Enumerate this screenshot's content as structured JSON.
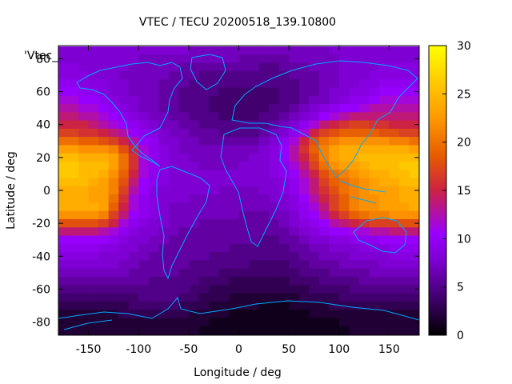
{
  "chart_data": {
    "type": "heatmap",
    "title": "VTEC / TECU 20200518_139.10800",
    "xlabel": "Longitude / deg",
    "ylabel": "Latitude / deg",
    "series_label": "'Vtec_",
    "xlim": [
      -180,
      180
    ],
    "ylim": [
      -88,
      88
    ],
    "xticks": [
      -150,
      -100,
      -50,
      0,
      50,
      100,
      150
    ],
    "yticks": [
      -80,
      -60,
      -40,
      -20,
      0,
      20,
      40,
      60,
      80
    ],
    "colorbar": {
      "min": 0,
      "max": 30,
      "ticks": [
        0,
        5,
        10,
        15,
        20,
        25,
        30
      ]
    },
    "colormap": [
      "#000000",
      "#3d0066",
      "#7a00cc",
      "#9900ff",
      "#cc2244",
      "#e65c00",
      "#ff9900",
      "#ffcc00",
      "#ffff00"
    ],
    "vtec_grid": {
      "lon_step": 10,
      "lat_step": 5,
      "lons": [
        -180,
        -170,
        -160,
        -150,
        -140,
        -130,
        -120,
        -110,
        -100,
        -90,
        -80,
        -70,
        -60,
        -50,
        -40,
        -30,
        -20,
        -10,
        0,
        10,
        20,
        30,
        40,
        50,
        60,
        70,
        80,
        90,
        100,
        110,
        120,
        130,
        140,
        150,
        160,
        170
      ],
      "lats": [
        85,
        80,
        75,
        70,
        65,
        60,
        55,
        50,
        45,
        40,
        35,
        30,
        25,
        20,
        15,
        10,
        5,
        0,
        -5,
        -10,
        -15,
        -20,
        -25,
        -30,
        -35,
        -40,
        -45,
        -50,
        -55,
        -60,
        -65,
        -70,
        -75,
        -80,
        -85
      ],
      "values": [
        [
          8,
          8,
          8,
          8,
          8,
          8,
          8,
          8,
          8,
          8,
          8,
          8,
          8,
          7,
          7,
          7,
          7,
          7,
          7,
          7,
          7,
          7,
          7,
          7,
          7,
          7,
          7,
          8,
          8,
          8,
          8,
          8,
          8,
          8,
          8,
          8
        ],
        [
          8,
          8,
          8,
          8,
          8,
          8,
          8,
          8,
          7,
          7,
          7,
          7,
          7,
          7,
          7,
          7,
          7,
          7,
          6,
          6,
          6,
          6,
          6,
          7,
          7,
          7,
          7,
          7,
          8,
          8,
          8,
          8,
          8,
          8,
          8,
          8
        ],
        [
          9,
          9,
          8,
          8,
          8,
          8,
          8,
          7,
          7,
          7,
          7,
          7,
          6,
          6,
          6,
          6,
          6,
          6,
          6,
          6,
          5,
          5,
          6,
          6,
          6,
          7,
          7,
          7,
          8,
          8,
          8,
          8,
          9,
          9,
          9,
          9
        ],
        [
          9,
          9,
          9,
          8,
          8,
          8,
          7,
          7,
          7,
          7,
          7,
          6,
          6,
          6,
          5,
          5,
          5,
          5,
          5,
          5,
          5,
          5,
          5,
          6,
          6,
          6,
          7,
          7,
          8,
          8,
          8,
          9,
          9,
          9,
          9,
          9
        ],
        [
          10,
          10,
          9,
          9,
          9,
          8,
          8,
          7,
          7,
          7,
          6,
          6,
          6,
          5,
          5,
          5,
          5,
          5,
          5,
          5,
          5,
          5,
          5,
          5,
          6,
          6,
          7,
          7,
          8,
          8,
          9,
          9,
          10,
          10,
          10,
          10
        ],
        [
          11,
          11,
          10,
          10,
          9,
          8,
          8,
          7,
          7,
          7,
          6,
          6,
          5,
          5,
          5,
          5,
          4,
          4,
          4,
          4,
          4,
          4,
          5,
          5,
          6,
          6,
          7,
          8,
          8,
          9,
          9,
          10,
          11,
          11,
          11,
          11
        ],
        [
          12,
          12,
          11,
          11,
          10,
          9,
          8,
          8,
          7,
          7,
          6,
          6,
          5,
          5,
          5,
          4,
          4,
          4,
          4,
          4,
          4,
          4,
          5,
          5,
          6,
          7,
          7,
          8,
          9,
          10,
          10,
          11,
          12,
          12,
          12,
          12
        ],
        [
          13,
          13,
          12,
          12,
          11,
          10,
          9,
          8,
          7,
          7,
          6,
          6,
          5,
          5,
          5,
          4,
          4,
          4,
          4,
          4,
          4,
          5,
          5,
          6,
          7,
          8,
          9,
          10,
          11,
          11,
          12,
          13,
          13,
          13,
          13,
          13
        ],
        [
          14,
          14,
          13,
          13,
          12,
          11,
          10,
          9,
          8,
          7,
          7,
          6,
          6,
          5,
          5,
          5,
          4,
          4,
          4,
          4,
          5,
          5,
          6,
          7,
          8,
          9,
          11,
          12,
          13,
          14,
          14,
          14,
          14,
          14,
          14,
          14
        ],
        [
          15,
          15,
          15,
          14,
          13,
          12,
          11,
          10,
          9,
          8,
          7,
          7,
          6,
          6,
          5,
          5,
          5,
          5,
          5,
          5,
          5,
          6,
          7,
          8,
          10,
          12,
          14,
          15,
          16,
          17,
          17,
          16,
          16,
          15,
          15,
          15
        ],
        [
          17,
          17,
          16,
          16,
          15,
          14,
          13,
          11,
          10,
          9,
          8,
          7,
          7,
          6,
          6,
          6,
          5,
          5,
          5,
          5,
          6,
          7,
          8,
          10,
          12,
          15,
          17,
          18,
          19,
          19,
          19,
          19,
          18,
          18,
          17,
          17
        ],
        [
          20,
          20,
          19,
          19,
          18,
          17,
          15,
          13,
          11,
          10,
          8,
          8,
          7,
          7,
          6,
          6,
          6,
          6,
          6,
          6,
          7,
          8,
          10,
          12,
          15,
          18,
          20,
          21,
          22,
          22,
          22,
          22,
          22,
          21,
          21,
          20
        ],
        [
          23,
          23,
          22,
          22,
          22,
          21,
          18,
          15,
          12,
          10,
          9,
          8,
          7,
          7,
          7,
          7,
          7,
          7,
          7,
          7,
          8,
          9,
          11,
          13,
          16,
          19,
          21,
          23,
          24,
          24,
          24,
          24,
          24,
          24,
          24,
          23
        ],
        [
          25,
          25,
          24,
          24,
          24,
          23,
          20,
          16,
          12,
          10,
          9,
          8,
          8,
          7,
          7,
          7,
          7,
          7,
          7,
          8,
          8,
          9,
          11,
          13,
          15,
          18,
          21,
          23,
          24,
          24,
          25,
          25,
          25,
          25,
          25,
          25
        ],
        [
          26,
          26,
          25,
          25,
          25,
          23,
          20,
          16,
          12,
          10,
          9,
          8,
          8,
          8,
          7,
          7,
          7,
          7,
          8,
          8,
          8,
          9,
          10,
          12,
          14,
          17,
          20,
          22,
          23,
          23,
          24,
          25,
          25,
          25,
          26,
          26
        ],
        [
          26,
          26,
          25,
          25,
          24,
          22,
          19,
          15,
          12,
          10,
          9,
          8,
          8,
          8,
          8,
          8,
          8,
          8,
          8,
          8,
          8,
          9,
          10,
          11,
          13,
          15,
          18,
          20,
          21,
          22,
          23,
          24,
          24,
          25,
          25,
          26
        ],
        [
          25,
          25,
          25,
          24,
          23,
          21,
          18,
          14,
          11,
          10,
          9,
          8,
          8,
          8,
          8,
          8,
          8,
          8,
          8,
          8,
          8,
          8,
          9,
          10,
          12,
          14,
          17,
          19,
          20,
          21,
          22,
          23,
          24,
          24,
          25,
          25
        ],
        [
          24,
          24,
          24,
          23,
          23,
          21,
          17,
          13,
          11,
          9,
          8,
          8,
          8,
          8,
          8,
          8,
          7,
          7,
          7,
          7,
          8,
          8,
          9,
          10,
          12,
          14,
          16,
          18,
          20,
          21,
          22,
          23,
          23,
          23,
          24,
          24
        ],
        [
          24,
          24,
          24,
          23,
          23,
          20,
          16,
          12,
          10,
          9,
          8,
          8,
          8,
          7,
          7,
          7,
          7,
          7,
          7,
          7,
          7,
          8,
          8,
          9,
          11,
          13,
          15,
          17,
          19,
          21,
          22,
          22,
          23,
          23,
          24,
          24
        ],
        [
          24,
          24,
          24,
          24,
          23,
          19,
          15,
          12,
          10,
          9,
          8,
          7,
          7,
          7,
          7,
          7,
          7,
          7,
          7,
          7,
          7,
          7,
          8,
          9,
          10,
          12,
          14,
          17,
          19,
          21,
          22,
          22,
          23,
          23,
          23,
          24
        ],
        [
          22,
          22,
          22,
          22,
          21,
          17,
          14,
          11,
          10,
          9,
          8,
          7,
          7,
          7,
          7,
          7,
          7,
          7,
          6,
          6,
          6,
          7,
          7,
          8,
          10,
          11,
          13,
          15,
          17,
          19,
          20,
          21,
          21,
          22,
          22,
          22
        ],
        [
          18,
          18,
          18,
          18,
          17,
          15,
          12,
          10,
          9,
          8,
          8,
          7,
          7,
          7,
          6,
          6,
          6,
          6,
          6,
          6,
          6,
          6,
          7,
          8,
          9,
          10,
          11,
          13,
          14,
          15,
          16,
          17,
          17,
          17,
          18,
          18
        ],
        [
          14,
          14,
          14,
          14,
          13,
          12,
          10,
          9,
          8,
          8,
          7,
          7,
          6,
          6,
          6,
          6,
          6,
          6,
          6,
          6,
          6,
          6,
          6,
          7,
          8,
          9,
          10,
          11,
          11,
          12,
          12,
          13,
          13,
          14,
          14,
          14
        ],
        [
          11,
          11,
          11,
          11,
          11,
          10,
          9,
          8,
          8,
          7,
          7,
          6,
          6,
          6,
          6,
          6,
          6,
          6,
          6,
          6,
          5,
          5,
          6,
          6,
          7,
          8,
          8,
          9,
          9,
          10,
          10,
          10,
          11,
          11,
          11,
          11
        ],
        [
          10,
          10,
          10,
          10,
          9,
          9,
          8,
          8,
          7,
          7,
          6,
          6,
          6,
          6,
          6,
          6,
          6,
          5,
          5,
          5,
          5,
          5,
          5,
          6,
          6,
          7,
          7,
          8,
          8,
          8,
          9,
          9,
          9,
          10,
          10,
          10
        ],
        [
          9,
          9,
          9,
          9,
          8,
          8,
          8,
          7,
          7,
          6,
          6,
          6,
          6,
          6,
          6,
          5,
          5,
          5,
          5,
          5,
          5,
          5,
          5,
          5,
          6,
          6,
          7,
          7,
          7,
          8,
          8,
          8,
          8,
          9,
          9,
          9
        ],
        [
          8,
          8,
          8,
          8,
          8,
          8,
          7,
          7,
          6,
          6,
          6,
          6,
          6,
          5,
          5,
          5,
          5,
          5,
          5,
          4,
          4,
          4,
          4,
          5,
          5,
          6,
          6,
          6,
          7,
          7,
          7,
          7,
          8,
          8,
          8,
          8
        ],
        [
          7,
          7,
          7,
          7,
          7,
          7,
          7,
          6,
          6,
          6,
          6,
          6,
          5,
          5,
          5,
          5,
          4,
          4,
          4,
          4,
          4,
          4,
          4,
          4,
          5,
          5,
          5,
          6,
          6,
          6,
          6,
          7,
          7,
          7,
          7,
          7
        ],
        [
          6,
          6,
          6,
          6,
          6,
          6,
          6,
          6,
          6,
          5,
          5,
          5,
          5,
          5,
          4,
          4,
          4,
          3,
          3,
          3,
          3,
          3,
          3,
          4,
          4,
          4,
          5,
          5,
          5,
          5,
          6,
          6,
          6,
          6,
          6,
          6
        ],
        [
          5,
          5,
          5,
          5,
          5,
          5,
          5,
          5,
          5,
          5,
          5,
          5,
          5,
          4,
          4,
          3,
          3,
          3,
          3,
          3,
          3,
          3,
          3,
          3,
          3,
          4,
          4,
          4,
          4,
          5,
          5,
          5,
          5,
          5,
          5,
          5
        ],
        [
          4,
          4,
          4,
          4,
          4,
          4,
          4,
          4,
          5,
          5,
          5,
          5,
          4,
          4,
          3,
          3,
          3,
          2,
          2,
          2,
          2,
          2,
          2,
          2,
          3,
          3,
          3,
          3,
          4,
          4,
          4,
          4,
          4,
          4,
          4,
          4
        ],
        [
          3,
          3,
          3,
          3,
          3,
          3,
          3,
          4,
          4,
          4,
          4,
          4,
          3,
          3,
          3,
          2,
          2,
          2,
          2,
          2,
          1,
          1,
          1,
          2,
          2,
          2,
          2,
          3,
          3,
          3,
          3,
          3,
          3,
          3,
          3,
          3
        ],
        [
          2,
          2,
          2,
          2,
          2,
          2,
          3,
          3,
          3,
          3,
          3,
          3,
          3,
          2,
          2,
          2,
          2,
          1,
          1,
          1,
          1,
          1,
          1,
          1,
          1,
          2,
          2,
          2,
          2,
          2,
          2,
          2,
          2,
          2,
          2,
          2
        ],
        [
          2,
          2,
          2,
          2,
          2,
          2,
          2,
          2,
          2,
          2,
          2,
          2,
          2,
          2,
          2,
          1,
          1,
          1,
          1,
          1,
          1,
          1,
          1,
          1,
          1,
          1,
          1,
          1,
          2,
          2,
          2,
          2,
          2,
          2,
          2,
          2
        ],
        [
          2,
          2,
          2,
          2,
          2,
          2,
          2,
          2,
          2,
          2,
          2,
          2,
          2,
          2,
          1,
          1,
          1,
          1,
          1,
          1,
          1,
          1,
          1,
          1,
          1,
          1,
          1,
          1,
          1,
          2,
          2,
          2,
          2,
          2,
          2,
          2
        ]
      ]
    },
    "overlay": "coastlines"
  }
}
